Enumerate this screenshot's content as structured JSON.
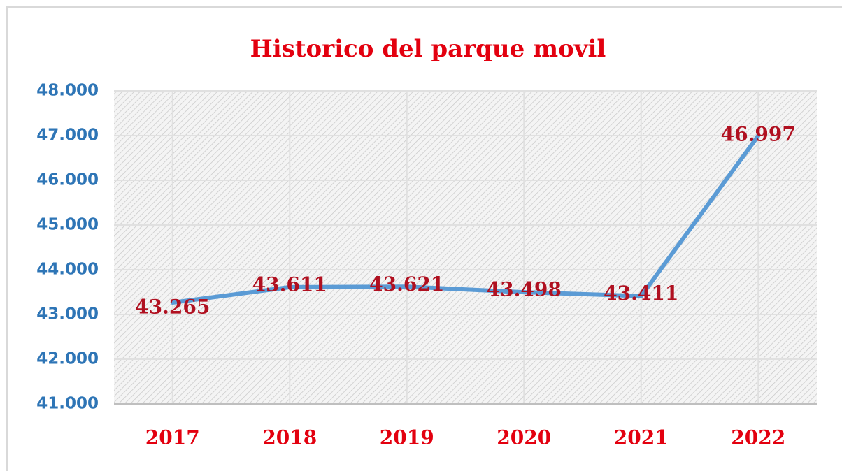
{
  "chart_data": {
    "type": "line",
    "title": "Historico del parque movil",
    "categories": [
      "2017",
      "2018",
      "2019",
      "2020",
      "2021",
      "2022"
    ],
    "series": [
      {
        "name": "Parque movil",
        "color": "#5b9bd5",
        "values": [
          43265,
          43611,
          43621,
          43498,
          43411,
          46997
        ],
        "value_labels": [
          "43.265",
          "43.611",
          "43.621",
          "43.498",
          "43.411",
          "46.997"
        ]
      }
    ],
    "ylim": [
      41000,
      48000
    ],
    "yticks": [
      {
        "value": 41000,
        "label": "41.000"
      },
      {
        "value": 42000,
        "label": "42.000"
      },
      {
        "value": 43000,
        "label": "43.000"
      },
      {
        "value": 44000,
        "label": "44.000"
      },
      {
        "value": 45000,
        "label": "45.000"
      },
      {
        "value": 46000,
        "label": "46.000"
      },
      {
        "value": 47000,
        "label": "47.000"
      },
      {
        "value": 48000,
        "label": "48.000"
      }
    ],
    "grid": true
  }
}
